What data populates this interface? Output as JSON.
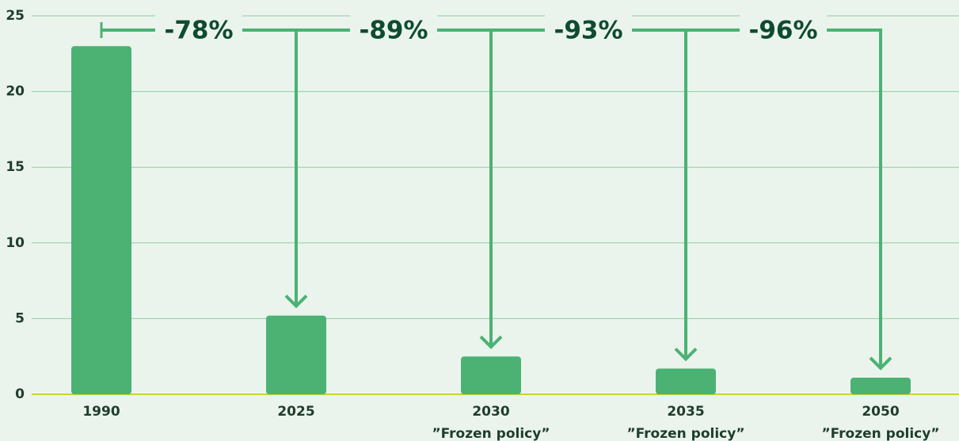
{
  "chart_data": {
    "type": "bar",
    "categories": [
      [
        "1990"
      ],
      [
        "2025"
      ],
      [
        "2030",
        "”Frozen policy”"
      ],
      [
        "2035",
        "”Frozen policy”"
      ],
      [
        "2050",
        "”Frozen policy”"
      ]
    ],
    "values": [
      23,
      5.2,
      2.5,
      1.7,
      1.1
    ],
    "color": "#4bb274",
    "ylim": [
      0,
      25
    ],
    "yticks": [
      0,
      5,
      10,
      15,
      20,
      25
    ],
    "grid": true,
    "annotations": [
      "-78%",
      "-89%",
      "-93%",
      "-96%"
    ]
  }
}
